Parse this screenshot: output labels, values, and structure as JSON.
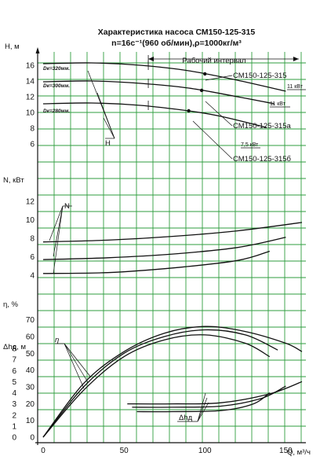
{
  "chart_data": {
    "type": "line",
    "title": "Характеристика насоса СМ150-125-315",
    "subtitle": "n=16c⁻¹(960 об/мин),ρ=1000кг/м³",
    "xlabel": "Q, м³/ч",
    "xlim": [
      0,
      160
    ],
    "x_ticks": [
      "0",
      "50",
      "100",
      "150"
    ],
    "grid": true,
    "panels": {
      "head": {
        "ylabel": "H, м",
        "ylim": [
          5.5,
          17.5
        ],
        "y_ticks": [
          "16",
          "14",
          "12",
          "10",
          "8",
          "6"
        ],
        "marker": "H",
        "working_interval_label": "Рабочий интервал",
        "working_interval": [
          65,
          158
        ],
        "series": [
          {
            "name": "СМ150-125-315",
            "diameter_label": "Dк=320мм.",
            "power_label": "11 кВт",
            "x": [
              0,
              30,
              60,
              90,
              120,
              150
            ],
            "y": [
              16.2,
              16.3,
              16.0,
              15.3,
              14.1,
              12.7
            ]
          },
          {
            "name": "СМ150-125-315а",
            "diameter_label": "Dк=300мм.",
            "power_label": "11 кВт",
            "x": [
              0,
              30,
              60,
              90,
              120,
              143
            ],
            "y": [
              13.9,
              14.0,
              13.7,
              13.1,
              12.0,
              11.1
            ]
          },
          {
            "name": "СМ150-125-315б",
            "diameter_label": "Dк=280мм.",
            "power_label": "7,5 кВт",
            "x": [
              0,
              30,
              60,
              90,
              110,
              138
            ],
            "y": [
              11.1,
              11.2,
              10.9,
              10.2,
              9.5,
              8.1
            ]
          }
        ]
      },
      "power": {
        "ylabel": "N, кВт",
        "ylim": [
          3,
          13
        ],
        "y_ticks": [
          "12",
          "10",
          "8",
          "6",
          "4"
        ],
        "marker": "N",
        "series": [
          {
            "x": [
              0,
              40,
              80,
              120,
              160
            ],
            "y": [
              7.6,
              7.8,
              8.2,
              8.8,
              9.7
            ]
          },
          {
            "x": [
              0,
              40,
              80,
              120,
              150
            ],
            "y": [
              5.7,
              5.9,
              6.3,
              7.0,
              8.1
            ]
          },
          {
            "x": [
              0,
              40,
              80,
              120,
              140
            ],
            "y": [
              4.2,
              4.3,
              4.8,
              5.6,
              6.6
            ]
          }
        ]
      },
      "efficiency": {
        "ylabel": "η, %",
        "ylim": [
          0,
          75
        ],
        "y_ticks": [
          "70",
          "60",
          "50",
          "40",
          "30",
          "20",
          "10",
          "0"
        ],
        "marker": "η",
        "series": [
          {
            "x": [
              0,
              25,
              50,
              75,
              100,
              125,
              150,
              160
            ],
            "y": [
              0,
              32,
              51,
              62,
              66,
              63,
              56,
              51
            ]
          },
          {
            "x": [
              0,
              25,
              50,
              75,
              100,
              125,
              145
            ],
            "y": [
              0,
              30,
              50,
              60,
              64,
              61,
              52
            ]
          },
          {
            "x": [
              0,
              25,
              50,
              75,
              100,
              125,
              140
            ],
            "y": [
              0,
              28,
              48,
              58,
              61,
              56,
              48
            ]
          }
        ]
      },
      "npsh": {
        "ylabel": "Δhд, м",
        "ylim": [
          0,
          8.5
        ],
        "y_ticks": [
          "8",
          "7",
          "6",
          "5",
          "4",
          "3",
          "2",
          "1",
          "0"
        ],
        "marker": "Δhд",
        "series": [
          {
            "x": [
              52,
              80,
              110,
              140,
              160
            ],
            "y": [
              3.0,
              3.0,
              3.1,
              3.9,
              5.0
            ]
          },
          {
            "x": [
              55,
              80,
              110,
              135,
              150
            ],
            "y": [
              2.7,
              2.7,
              2.8,
              3.5,
              4.6
            ]
          },
          {
            "x": [
              58,
              80,
              110,
              130,
              140
            ],
            "y": [
              2.3,
              2.3,
              2.4,
              3.0,
              4.0
            ]
          }
        ]
      }
    }
  }
}
